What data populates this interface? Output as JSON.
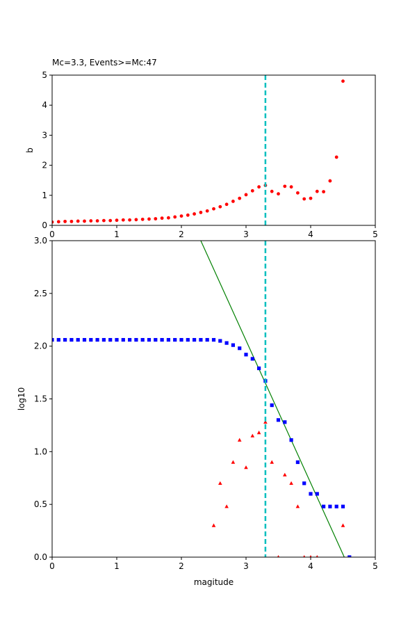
{
  "chart_data": [
    {
      "type": "scatter",
      "title": "Mc=3.3, Events>=Mc:47",
      "xlabel": "",
      "ylabel": "b",
      "xlim": [
        0,
        5
      ],
      "ylim": [
        0,
        5
      ],
      "xticks": [
        "0",
        "1",
        "2",
        "3",
        "4",
        "5"
      ],
      "yticks": [
        "0",
        "1",
        "2",
        "3",
        "4",
        "5"
      ],
      "grid": false,
      "series": [
        {
          "marker": "circle",
          "color": "#ff0000",
          "x": [
            0.0,
            0.1,
            0.2,
            0.3,
            0.4,
            0.5,
            0.6,
            0.7,
            0.8,
            0.9,
            1.0,
            1.1,
            1.2,
            1.3,
            1.4,
            1.5,
            1.6,
            1.7,
            1.8,
            1.9,
            2.0,
            2.1,
            2.2,
            2.3,
            2.4,
            2.5,
            2.6,
            2.7,
            2.8,
            2.9,
            3.0,
            3.1,
            3.2,
            3.3,
            3.4,
            3.5,
            3.6,
            3.7,
            3.8,
            3.9,
            4.0,
            4.1,
            4.2,
            4.3,
            4.4,
            4.5
          ],
          "y": [
            0.11,
            0.12,
            0.13,
            0.13,
            0.14,
            0.14,
            0.15,
            0.15,
            0.16,
            0.16,
            0.17,
            0.18,
            0.18,
            0.19,
            0.2,
            0.21,
            0.22,
            0.24,
            0.25,
            0.28,
            0.31,
            0.34,
            0.38,
            0.43,
            0.48,
            0.55,
            0.62,
            0.7,
            0.8,
            0.9,
            1.02,
            1.15,
            1.28,
            1.33,
            1.13,
            1.05,
            1.3,
            1.28,
            1.08,
            0.88,
            0.9,
            1.13,
            1.12,
            1.48,
            2.27,
            4.8
          ]
        }
      ],
      "vline": {
        "x": 3.3,
        "color": "#00bfbf",
        "style": "dashed"
      }
    },
    {
      "type": "scatter",
      "title": "",
      "xlabel": "magitude",
      "ylabel": "log10",
      "xlim": [
        0,
        5
      ],
      "ylim": [
        0,
        3
      ],
      "xticks": [
        "0",
        "1",
        "2",
        "3",
        "4",
        "5"
      ],
      "yticks": [
        "0.0",
        "0.5",
        "1.0",
        "1.5",
        "2.0",
        "2.5",
        "3.0"
      ],
      "grid": false,
      "series": [
        {
          "marker": "square",
          "color": "#0000ff",
          "x": [
            0.0,
            0.1,
            0.2,
            0.3,
            0.4,
            0.5,
            0.6,
            0.7,
            0.8,
            0.9,
            1.0,
            1.1,
            1.2,
            1.3,
            1.4,
            1.5,
            1.6,
            1.7,
            1.8,
            1.9,
            2.0,
            2.1,
            2.2,
            2.3,
            2.4,
            2.5,
            2.6,
            2.7,
            2.8,
            2.9,
            3.0,
            3.1,
            3.2,
            3.3,
            3.4,
            3.5,
            3.6,
            3.7,
            3.8,
            3.9,
            4.0,
            4.1,
            4.2,
            4.3,
            4.4,
            4.5,
            4.6
          ],
          "y": [
            2.06,
            2.06,
            2.06,
            2.06,
            2.06,
            2.06,
            2.06,
            2.06,
            2.06,
            2.06,
            2.06,
            2.06,
            2.06,
            2.06,
            2.06,
            2.06,
            2.06,
            2.06,
            2.06,
            2.06,
            2.06,
            2.06,
            2.06,
            2.06,
            2.06,
            2.06,
            2.05,
            2.03,
            2.01,
            1.98,
            1.92,
            1.88,
            1.79,
            1.67,
            1.44,
            1.3,
            1.28,
            1.11,
            0.9,
            0.7,
            0.6,
            0.6,
            0.48,
            0.48,
            0.48,
            0.48,
            0.0
          ]
        },
        {
          "marker": "triangle",
          "color": "#ff0000",
          "x": [
            2.5,
            2.6,
            2.7,
            2.8,
            2.9,
            3.0,
            3.1,
            3.2,
            3.3,
            3.4,
            3.5,
            3.6,
            3.7,
            3.8,
            3.9,
            4.0,
            4.1,
            4.5
          ],
          "y": [
            0.3,
            0.7,
            0.48,
            0.9,
            1.11,
            0.85,
            1.15,
            1.18,
            1.28,
            0.9,
            0.0,
            0.78,
            0.7,
            0.48,
            0.0,
            0.0,
            0.0,
            0.3
          ]
        }
      ],
      "fit_line": {
        "x": [
          2.3,
          4.52
        ],
        "y": [
          3.0,
          0.0
        ],
        "color": "#008000"
      },
      "vline": {
        "x": 3.3,
        "color": "#00bfbf",
        "style": "dashed"
      }
    }
  ]
}
